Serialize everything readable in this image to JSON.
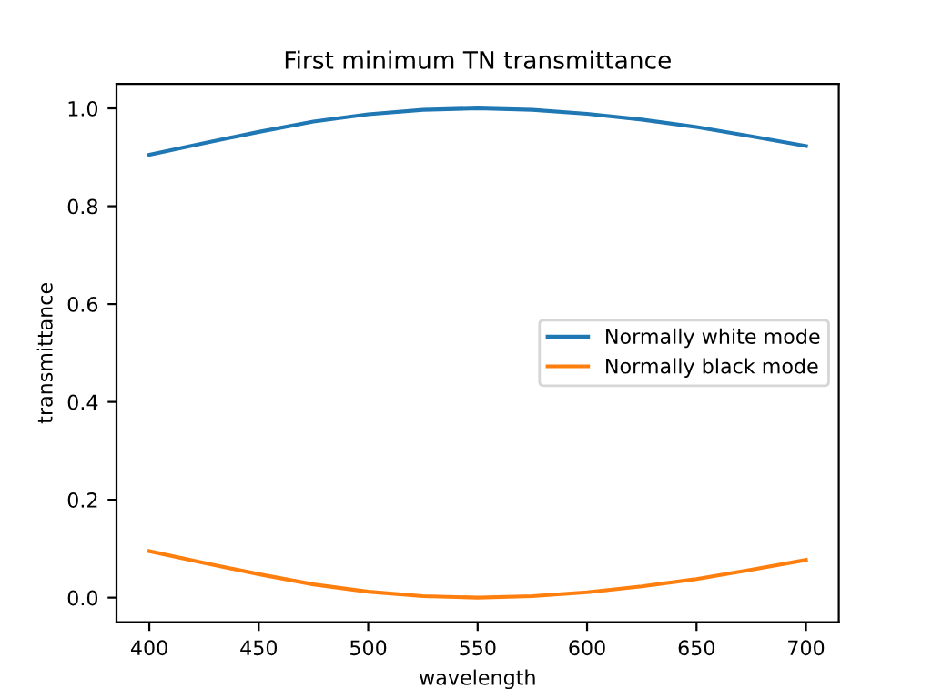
{
  "chart_data": {
    "type": "line",
    "title": "First minimum TN transmittance",
    "xlabel": "wavelength",
    "ylabel": "transmittance",
    "x": [
      400,
      425,
      450,
      475,
      500,
      525,
      550,
      575,
      600,
      625,
      650,
      675,
      700
    ],
    "series": [
      {
        "name": "Normally white mode",
        "color": "#1f77b4",
        "values": [
          0.905,
          0.929,
          0.952,
          0.973,
          0.988,
          0.997,
          1.0,
          0.997,
          0.989,
          0.977,
          0.962,
          0.943,
          0.923
        ]
      },
      {
        "name": "Normally black mode",
        "color": "#ff7f0e",
        "values": [
          0.095,
          0.071,
          0.048,
          0.027,
          0.012,
          0.003,
          0.0,
          0.003,
          0.011,
          0.023,
          0.038,
          0.057,
          0.077
        ]
      }
    ],
    "xlim": [
      385,
      715
    ],
    "ylim": [
      -0.05,
      1.05
    ],
    "xticks": [
      400,
      450,
      500,
      550,
      600,
      650,
      700
    ],
    "yticks": [
      {
        "value": 0,
        "label": "0.0"
      },
      {
        "value": 0.2,
        "label": "0.2"
      },
      {
        "value": 0.4,
        "label": "0.4"
      },
      {
        "value": 0.6,
        "label": "0.6"
      },
      {
        "value": 0.8,
        "label": "0.8"
      },
      {
        "value": 1.0,
        "label": "1.0"
      }
    ],
    "grid": false,
    "legend": "center right"
  }
}
